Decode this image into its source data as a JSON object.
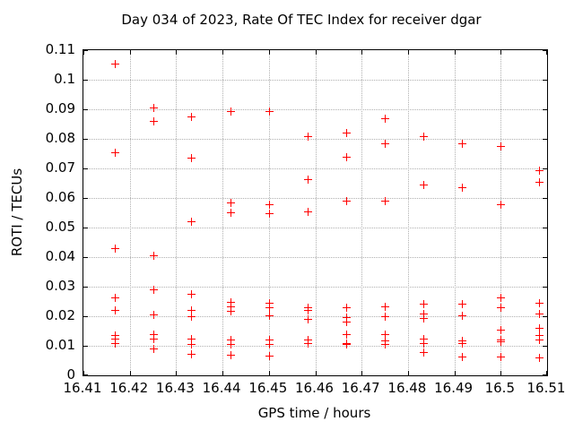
{
  "page": {
    "background": "#ffffff",
    "text_color": "#000000"
  },
  "chart_data": {
    "type": "scatter",
    "title": "Day 034 of 2023, Rate Of TEC Index for receiver dgar",
    "xlabel": "GPS time / hours",
    "ylabel": "ROTI / TECUs",
    "xlim": [
      16.41,
      16.51
    ],
    "ylim": [
      0,
      0.11
    ],
    "grid": true,
    "grid_color": "#b0b0b0",
    "frame_color": "#000000",
    "marker": "plus",
    "marker_color": "#ff0000",
    "legend": "none",
    "xticks": [
      {
        "v": 16.41,
        "label": "16.41"
      },
      {
        "v": 16.42,
        "label": "16.42"
      },
      {
        "v": 16.43,
        "label": "16.43"
      },
      {
        "v": 16.44,
        "label": "16.44"
      },
      {
        "v": 16.45,
        "label": "16.45"
      },
      {
        "v": 16.46,
        "label": "16.46"
      },
      {
        "v": 16.47,
        "label": "16.47"
      },
      {
        "v": 16.48,
        "label": "16.48"
      },
      {
        "v": 16.49,
        "label": "16.49"
      },
      {
        "v": 16.5,
        "label": "16.5"
      },
      {
        "v": 16.51,
        "label": "16.51"
      }
    ],
    "yticks": [
      {
        "v": 0,
        "label": "0"
      },
      {
        "v": 0.01,
        "label": "0.01"
      },
      {
        "v": 0.02,
        "label": "0.02"
      },
      {
        "v": 0.03,
        "label": "0.03"
      },
      {
        "v": 0.04,
        "label": "0.04"
      },
      {
        "v": 0.05,
        "label": "0.05"
      },
      {
        "v": 0.06,
        "label": "0.06"
      },
      {
        "v": 0.07,
        "label": "0.07"
      },
      {
        "v": 0.08,
        "label": "0.08"
      },
      {
        "v": 0.09,
        "label": "0.09"
      },
      {
        "v": 0.1,
        "label": "0.1"
      },
      {
        "v": 0.11,
        "label": "0.11"
      }
    ],
    "series": [
      {
        "name": "ROTI",
        "points": [
          [
            16.4167,
            0.1055
          ],
          [
            16.4167,
            0.0755
          ],
          [
            16.4167,
            0.043
          ],
          [
            16.4167,
            0.0265
          ],
          [
            16.4167,
            0.022
          ],
          [
            16.4167,
            0.0135
          ],
          [
            16.4167,
            0.0125
          ],
          [
            16.4167,
            0.011
          ],
          [
            16.425,
            0.0905
          ],
          [
            16.425,
            0.086
          ],
          [
            16.425,
            0.0405
          ],
          [
            16.425,
            0.029
          ],
          [
            16.425,
            0.0205
          ],
          [
            16.425,
            0.014
          ],
          [
            16.425,
            0.0125
          ],
          [
            16.425,
            0.009
          ],
          [
            16.4333,
            0.0877
          ],
          [
            16.4333,
            0.0737
          ],
          [
            16.4333,
            0.052
          ],
          [
            16.4333,
            0.0277
          ],
          [
            16.4333,
            0.022
          ],
          [
            16.4333,
            0.02
          ],
          [
            16.4333,
            0.0125
          ],
          [
            16.4333,
            0.0107
          ],
          [
            16.4333,
            0.0072
          ],
          [
            16.4417,
            0.0895
          ],
          [
            16.4417,
            0.0585
          ],
          [
            16.4417,
            0.0552
          ],
          [
            16.4417,
            0.0248
          ],
          [
            16.4417,
            0.0232
          ],
          [
            16.4417,
            0.0218
          ],
          [
            16.4417,
            0.012
          ],
          [
            16.4417,
            0.0107
          ],
          [
            16.4417,
            0.007
          ],
          [
            16.45,
            0.0895
          ],
          [
            16.45,
            0.0578
          ],
          [
            16.45,
            0.055
          ],
          [
            16.45,
            0.0244
          ],
          [
            16.45,
            0.023
          ],
          [
            16.45,
            0.0202
          ],
          [
            16.45,
            0.012
          ],
          [
            16.45,
            0.0105
          ],
          [
            16.45,
            0.0068
          ],
          [
            16.4583,
            0.081
          ],
          [
            16.4583,
            0.0665
          ],
          [
            16.4583,
            0.0555
          ],
          [
            16.4583,
            0.023
          ],
          [
            16.4583,
            0.0222
          ],
          [
            16.4583,
            0.019
          ],
          [
            16.4583,
            0.012
          ],
          [
            16.4583,
            0.0108
          ],
          [
            16.4667,
            0.082
          ],
          [
            16.4667,
            0.074
          ],
          [
            16.4667,
            0.059
          ],
          [
            16.4667,
            0.023
          ],
          [
            16.4667,
            0.0198
          ],
          [
            16.4667,
            0.0181
          ],
          [
            16.4667,
            0.0139
          ],
          [
            16.4667,
            0.011
          ],
          [
            16.4667,
            0.0105
          ],
          [
            16.475,
            0.087
          ],
          [
            16.475,
            0.0785
          ],
          [
            16.475,
            0.059
          ],
          [
            16.475,
            0.0232
          ],
          [
            16.475,
            0.0201
          ],
          [
            16.475,
            0.0199
          ],
          [
            16.475,
            0.0139
          ],
          [
            16.475,
            0.0117
          ],
          [
            16.475,
            0.0106
          ],
          [
            16.4833,
            0.081
          ],
          [
            16.4833,
            0.0645
          ],
          [
            16.4833,
            0.0242
          ],
          [
            16.4833,
            0.021
          ],
          [
            16.4833,
            0.0195
          ],
          [
            16.4833,
            0.0124
          ],
          [
            16.4833,
            0.011
          ],
          [
            16.4833,
            0.0078
          ],
          [
            16.4917,
            0.0785
          ],
          [
            16.4917,
            0.0635
          ],
          [
            16.4917,
            0.0242
          ],
          [
            16.4917,
            0.0202
          ],
          [
            16.4917,
            0.0117
          ],
          [
            16.4917,
            0.0108
          ],
          [
            16.4917,
            0.0063
          ],
          [
            16.5,
            0.0775
          ],
          [
            16.5,
            0.058
          ],
          [
            16.5,
            0.0265
          ],
          [
            16.5,
            0.023
          ],
          [
            16.5,
            0.0155
          ],
          [
            16.5,
            0.012
          ],
          [
            16.5,
            0.0115
          ],
          [
            16.5,
            0.0065
          ],
          [
            16.5083,
            0.0695
          ],
          [
            16.5083,
            0.0655
          ],
          [
            16.5083,
            0.0245
          ],
          [
            16.5083,
            0.021
          ],
          [
            16.5083,
            0.016
          ],
          [
            16.5083,
            0.0135
          ],
          [
            16.5083,
            0.012
          ],
          [
            16.5083,
            0.006
          ]
        ]
      }
    ]
  }
}
